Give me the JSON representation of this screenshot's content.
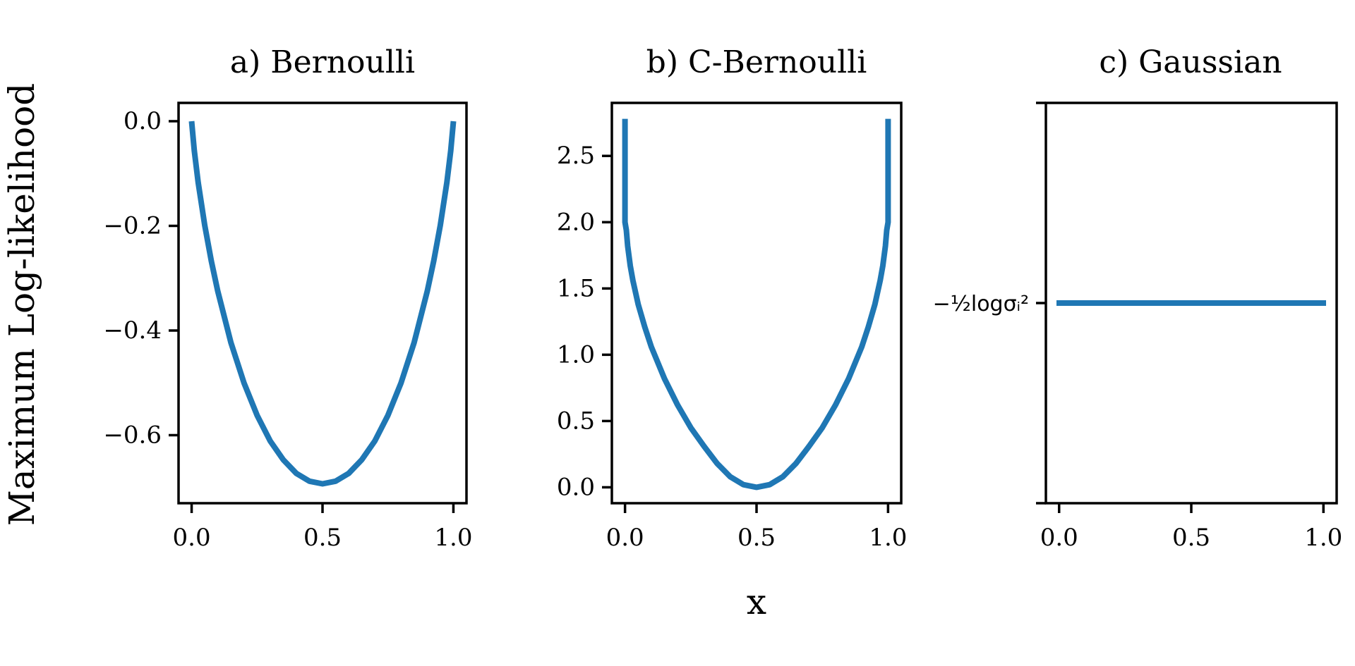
{
  "figure": {
    "ylabel": "Maximum Log-likelihood",
    "xlabel": "x",
    "line_color": "#1f77b4"
  },
  "chart_data": [
    {
      "type": "line",
      "title": "a) Bernoulli",
      "xlim": [
        -0.05,
        1.05
      ],
      "ylim": [
        -0.73,
        0.035
      ],
      "xticks": [
        0.0,
        0.5,
        1.0
      ],
      "xtick_labels": [
        "0.0",
        "0.5",
        "1.0"
      ],
      "yticks": [
        0.0,
        -0.2,
        -0.4,
        -0.6
      ],
      "ytick_labels": [
        "0.0",
        "−0.2",
        "−0.4",
        "−0.6"
      ],
      "series": [
        {
          "x": [
            0.0,
            0.01,
            0.025,
            0.05,
            0.075,
            0.1,
            0.15,
            0.2,
            0.25,
            0.3,
            0.35,
            0.4,
            0.45,
            0.5,
            0.55,
            0.6,
            0.65,
            0.7,
            0.75,
            0.8,
            0.85,
            0.9,
            0.925,
            0.95,
            0.975,
            0.99,
            1.0
          ],
          "y": [
            0.0,
            -0.056,
            -0.117,
            -0.199,
            -0.267,
            -0.325,
            -0.423,
            -0.5,
            -0.562,
            -0.611,
            -0.647,
            -0.673,
            -0.688,
            -0.693,
            -0.688,
            -0.673,
            -0.647,
            -0.611,
            -0.562,
            -0.5,
            -0.423,
            -0.325,
            -0.267,
            -0.199,
            -0.117,
            -0.056,
            0.0
          ]
        }
      ]
    },
    {
      "type": "line",
      "title": "b) C-Bernoulli",
      "xlim": [
        -0.05,
        1.05
      ],
      "ylim": [
        -0.12,
        2.9
      ],
      "xticks": [
        0.0,
        0.5,
        1.0
      ],
      "xtick_labels": [
        "0.0",
        "0.5",
        "1.0"
      ],
      "yticks": [
        0.0,
        0.5,
        1.0,
        1.5,
        2.0,
        2.5
      ],
      "ytick_labels": [
        "0.0",
        "0.5",
        "1.0",
        "1.5",
        "2.0",
        "2.5"
      ],
      "series": [
        {
          "x": [
            0.0,
            0.0,
            0.005,
            0.01,
            0.02,
            0.03,
            0.05,
            0.075,
            0.1,
            0.15,
            0.2,
            0.25,
            0.3,
            0.35,
            0.4,
            0.45,
            0.5,
            0.55,
            0.6,
            0.65,
            0.7,
            0.75,
            0.8,
            0.85,
            0.9,
            0.925,
            0.95,
            0.97,
            0.98,
            0.99,
            0.995,
            1.0,
            1.0
          ],
          "y": [
            2.78,
            2.0,
            1.94,
            1.82,
            1.67,
            1.56,
            1.38,
            1.21,
            1.06,
            0.82,
            0.62,
            0.45,
            0.31,
            0.18,
            0.08,
            0.02,
            0.0,
            0.02,
            0.08,
            0.18,
            0.31,
            0.45,
            0.62,
            0.82,
            1.06,
            1.21,
            1.38,
            1.56,
            1.67,
            1.82,
            1.94,
            2.0,
            2.78
          ]
        }
      ]
    },
    {
      "type": "line",
      "title": "c) Gaussian",
      "xlim": [
        -0.05,
        1.05
      ],
      "ylim": [
        -1.0,
        1.0
      ],
      "xticks": [
        0.0,
        0.5,
        1.0
      ],
      "xtick_labels": [
        "0.0",
        "0.5",
        "1.0"
      ],
      "yticks": [
        1.0,
        0.0,
        -1.0
      ],
      "ytick_labels": [
        "",
        "−½logσᵢ²",
        ""
      ],
      "series": [
        {
          "x": [
            -0.01,
            1.01
          ],
          "y": [
            0.0,
            0.0
          ]
        }
      ]
    }
  ]
}
